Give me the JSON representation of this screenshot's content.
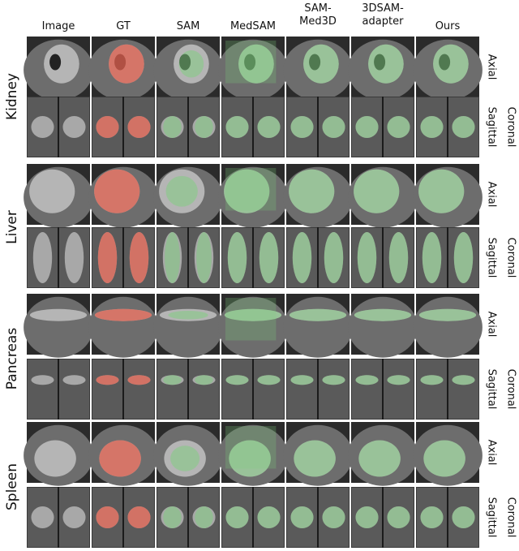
{
  "columns": [
    "Image",
    "GT",
    "SAM",
    "MedSAM",
    "SAM-\nMed3D",
    "3DSAM-\nadapter",
    "Ours"
  ],
  "organs": [
    "Kidney",
    "Liver",
    "Pancreas",
    "Spleen"
  ],
  "views": {
    "axial": "Axial",
    "coronal": "Coronal",
    "sagittal": "Sagittal"
  }
}
